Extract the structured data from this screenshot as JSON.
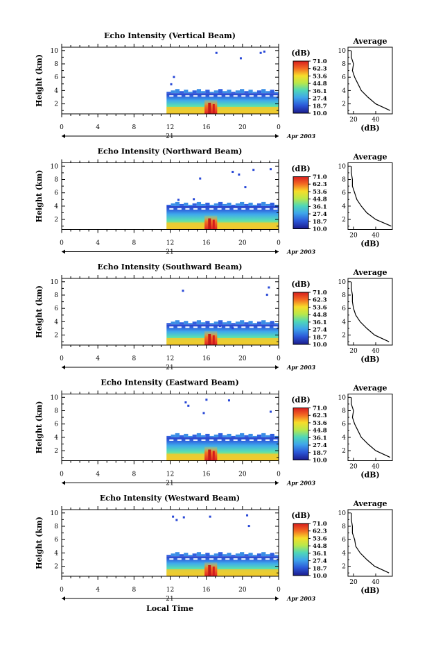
{
  "figure": {
    "xaxis_label": "Local Time",
    "x_ticks": [
      "0",
      "4",
      "8",
      "12",
      "16",
      "20",
      "0"
    ],
    "day_label": "21",
    "date_label": "Apr 2003",
    "y_label": "Height (km)",
    "y_ticks": [
      "2",
      "4",
      "6",
      "8",
      "10"
    ],
    "cbar_unit": "(dB)",
    "cbar_ticks": [
      "71.0",
      "62.3",
      "53.6",
      "44.8",
      "36.1",
      "27.4",
      "18.7",
      "10.0"
    ],
    "avg_title": "Average",
    "avg_unit": "(dB)",
    "avg_xticks": [
      "20",
      "40"
    ]
  },
  "chart_data": [
    {
      "type": "heatmap",
      "title": "Echo Intensity (Vertical Beam)",
      "xlabel": "Local Time",
      "ylabel": "Height (km)",
      "xlim": [
        0,
        24
      ],
      "ylim": [
        0.5,
        10.5
      ],
      "colorbar": {
        "unit": "dB",
        "range": [
          10.0,
          71.0
        ]
      },
      "data_start_hour": 11.6,
      "layer_top_km": 3.6,
      "scatter_echoes": [
        {
          "x": 12.3,
          "y": 6.2
        },
        {
          "x": 12.0,
          "y": 5.1
        },
        {
          "x": 17.0,
          "y": 9.8
        },
        {
          "x": 19.7,
          "y": 9.0
        },
        {
          "x": 21.9,
          "y": 9.8
        },
        {
          "x": 22.3,
          "y": 10.0
        }
      ],
      "average_profile": {
        "xlim": [
          15,
          55
        ],
        "heights_km": [
          1,
          2,
          3,
          4,
          5,
          6,
          7,
          8,
          9,
          10
        ],
        "db": [
          53,
          40,
          33,
          27,
          24,
          21,
          19,
          20,
          18,
          18
        ]
      }
    },
    {
      "type": "heatmap",
      "title": "Echo Intensity (Northward Beam)",
      "xlabel": "Local Time",
      "ylabel": "Height (km)",
      "xlim": [
        0,
        24
      ],
      "ylim": [
        0.5,
        10.5
      ],
      "colorbar": {
        "unit": "dB",
        "range": [
          10.0,
          71.0
        ]
      },
      "data_start_hour": 11.6,
      "layer_top_km": 4.0,
      "scatter_echoes": [
        {
          "x": 15.2,
          "y": 8.3
        },
        {
          "x": 18.8,
          "y": 9.3
        },
        {
          "x": 19.5,
          "y": 8.9
        },
        {
          "x": 20.2,
          "y": 7.0
        },
        {
          "x": 21.1,
          "y": 9.6
        },
        {
          "x": 23.0,
          "y": 9.7
        },
        {
          "x": 12.8,
          "y": 5.1
        },
        {
          "x": 14.5,
          "y": 5.2
        }
      ],
      "average_profile": {
        "xlim": [
          15,
          55
        ],
        "heights_km": [
          1,
          2,
          3,
          4,
          5,
          6,
          7,
          8,
          9,
          10
        ],
        "db": [
          54,
          40,
          32,
          27,
          23,
          21,
          19,
          19,
          18,
          18
        ]
      }
    },
    {
      "type": "heatmap",
      "title": "Echo Intensity (Southward Beam)",
      "xlabel": "Local Time",
      "ylabel": "Height (km)",
      "xlim": [
        0,
        24
      ],
      "ylim": [
        0.5,
        10.5
      ],
      "colorbar": {
        "unit": "dB",
        "range": [
          10.0,
          71.0
        ]
      },
      "data_start_hour": 11.6,
      "layer_top_km": 3.6,
      "scatter_echoes": [
        {
          "x": 13.3,
          "y": 8.8
        },
        {
          "x": 22.8,
          "y": 9.3
        },
        {
          "x": 22.6,
          "y": 8.2
        },
        {
          "x": 17.4,
          "y": 3.5
        },
        {
          "x": 18.8,
          "y": 3.2
        }
      ],
      "average_profile": {
        "xlim": [
          15,
          55
        ],
        "heights_km": [
          1,
          2,
          3,
          4,
          5,
          6,
          7,
          8,
          9,
          10
        ],
        "db": [
          52,
          39,
          32,
          26,
          22,
          20,
          19,
          19,
          18,
          18
        ]
      }
    },
    {
      "type": "heatmap",
      "title": "Echo Intensity (Eastward Beam)",
      "xlabel": "Local Time",
      "ylabel": "Height (km)",
      "xlim": [
        0,
        24
      ],
      "ylim": [
        0.5,
        10.5
      ],
      "colorbar": {
        "unit": "dB",
        "range": [
          10.0,
          71.0
        ]
      },
      "data_start_hour": 11.6,
      "layer_top_km": 4.0,
      "scatter_echoes": [
        {
          "x": 13.6,
          "y": 9.4
        },
        {
          "x": 15.9,
          "y": 9.8
        },
        {
          "x": 18.4,
          "y": 9.7
        },
        {
          "x": 15.6,
          "y": 7.8
        },
        {
          "x": 23.0,
          "y": 8.0
        },
        {
          "x": 13.9,
          "y": 8.9
        }
      ],
      "average_profile": {
        "xlim": [
          15,
          55
        ],
        "heights_km": [
          1,
          2,
          3,
          4,
          5,
          6,
          7,
          8,
          9,
          10
        ],
        "db": [
          53,
          40,
          33,
          27,
          24,
          21,
          19,
          20,
          18,
          18
        ]
      }
    },
    {
      "type": "heatmap",
      "title": "Echo Intensity (Westward Beam)",
      "xlabel": "Local Time",
      "ylabel": "Height (km)",
      "xlim": [
        0,
        24
      ],
      "ylim": [
        0.5,
        10.5
      ],
      "colorbar": {
        "unit": "dB",
        "range": [
          10.0,
          71.0
        ]
      },
      "data_start_hour": 11.6,
      "layer_top_km": 3.5,
      "scatter_echoes": [
        {
          "x": 12.2,
          "y": 9.6
        },
        {
          "x": 13.4,
          "y": 9.5
        },
        {
          "x": 16.3,
          "y": 9.6
        },
        {
          "x": 20.6,
          "y": 8.2
        },
        {
          "x": 20.4,
          "y": 9.8
        },
        {
          "x": 12.6,
          "y": 9.1
        }
      ],
      "average_profile": {
        "xlim": [
          15,
          55
        ],
        "heights_km": [
          1,
          2,
          3,
          4,
          5,
          6,
          7,
          8,
          9,
          10
        ],
        "db": [
          52,
          39,
          32,
          26,
          22,
          21,
          19,
          19,
          18,
          18
        ]
      }
    }
  ]
}
